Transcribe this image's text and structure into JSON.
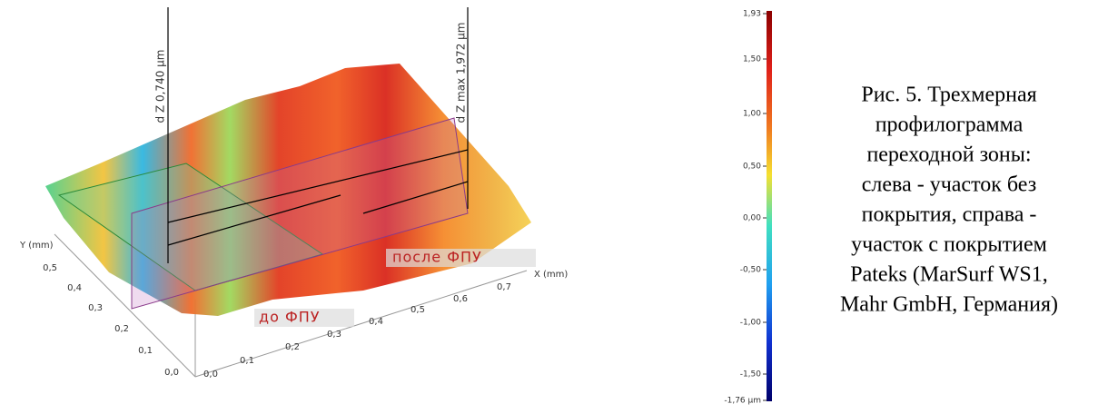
{
  "plot": {
    "y_axis_label": "Y (mm)",
    "y_ticks": [
      "0,0",
      "0,1",
      "0,2",
      "0,3",
      "0,4",
      "0,5"
    ],
    "x_axis_label": "X (mm)",
    "x_ticks": [
      "0,0",
      "0,1",
      "0,2",
      "0,3",
      "0,4",
      "0,5",
      "0,6",
      "0,7"
    ],
    "annotations": [
      "d Z 0,740 µm",
      "d Z max 1,972 µm",
      "после ФПУ",
      "до ФПУ"
    ]
  },
  "colorbar": {
    "ticks": [
      "1,93",
      "1,50",
      "1,00",
      "0,50",
      "0,00",
      "-0,50",
      "-1,00",
      "-1,50",
      "-1,76 µm"
    ]
  },
  "caption": {
    "lines": [
      "Рис. 5. Трехмерная",
      "профилограмма",
      "переходной зоны:",
      "слева - участок без",
      "покрытия, справа -",
      "участок с покрытием",
      "Pateks (MarSurf WS1,",
      "Mahr GmbH, Германия)"
    ]
  }
}
